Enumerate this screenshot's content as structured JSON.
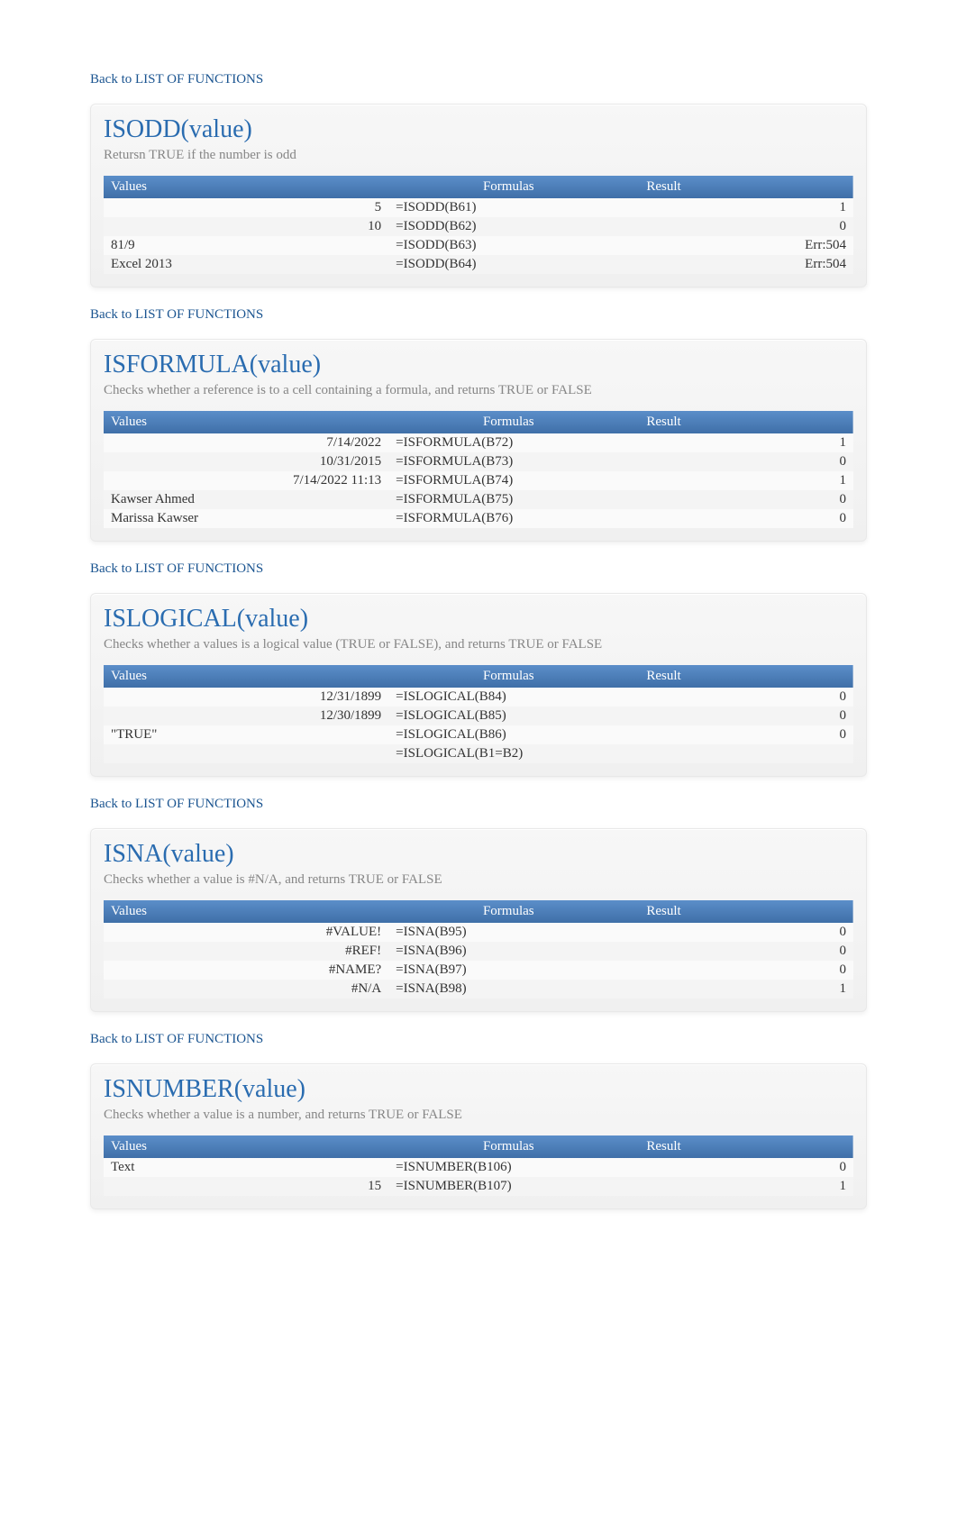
{
  "back_link_text": "Back to LIST OF FUNCTIONS",
  "colors": {
    "link": "#1a5490",
    "title": "#2a6cb0",
    "desc": "#868686",
    "header_bg_top": "#5b8ec9",
    "header_bg_bottom": "#3f6fa8",
    "header_text": "#ffffff",
    "block_bg": "#f0f0f0",
    "row_odd": "#fafafa",
    "row_even": "#f4f4f4"
  },
  "headers": {
    "values": "Values",
    "formulas": "Formulas",
    "result": "Result"
  },
  "sections": [
    {
      "id": "isodd",
      "title": "ISODD(value)",
      "desc": "Retursn TRUE if the number is odd",
      "rows": [
        {
          "value": "5",
          "value_align": "right",
          "formula": "=ISODD(B61)",
          "result": "1"
        },
        {
          "value": "10",
          "value_align": "right",
          "formula": "=ISODD(B62)",
          "result": "0"
        },
        {
          "value": "81/9",
          "value_align": "left",
          "formula": "=ISODD(B63)",
          "result": "Err:504"
        },
        {
          "value": "Excel 2013",
          "value_align": "left",
          "formula": "=ISODD(B64)",
          "result": "Err:504"
        }
      ]
    },
    {
      "id": "isformula",
      "title": "ISFORMULA(value)",
      "desc": "Checks whether a reference is to a cell containing a formula, and returns TRUE or FALSE",
      "rows": [
        {
          "value": "7/14/2022",
          "value_align": "right",
          "formula": "=ISFORMULA(B72)",
          "result": "1"
        },
        {
          "value": "10/31/2015",
          "value_align": "right",
          "formula": "=ISFORMULA(B73)",
          "result": "0"
        },
        {
          "value": "7/14/2022 11:13",
          "value_align": "right",
          "formula": "=ISFORMULA(B74)",
          "result": "1"
        },
        {
          "value": "Kawser Ahmed",
          "value_align": "left",
          "formula": "=ISFORMULA(B75)",
          "result": "0"
        },
        {
          "value": "Marissa Kawser",
          "value_align": "left",
          "formula": "=ISFORMULA(B76)",
          "result": "0"
        }
      ]
    },
    {
      "id": "islogical",
      "title": "ISLOGICAL(value)",
      "desc": "Checks whether a values is a logical value (TRUE or FALSE), and returns TRUE or FALSE",
      "rows": [
        {
          "value": "12/31/1899",
          "value_align": "right",
          "formula": "=ISLOGICAL(B84)",
          "result": "0"
        },
        {
          "value": "12/30/1899",
          "value_align": "right",
          "formula": "=ISLOGICAL(B85)",
          "result": "0"
        },
        {
          "value": "\"TRUE\"",
          "value_align": "left",
          "formula": "=ISLOGICAL(B86)",
          "result": "0"
        },
        {
          "value": "",
          "value_align": "right",
          "formula": "=ISLOGICAL(B1=B2)",
          "result": ""
        }
      ]
    },
    {
      "id": "isna",
      "title": "ISNA(value)",
      "desc": "Checks whether a value is #N/A, and returns TRUE or FALSE",
      "rows": [
        {
          "value": "#VALUE!",
          "value_align": "right",
          "formula": "=ISNA(B95)",
          "result": "0"
        },
        {
          "value": "#REF!",
          "value_align": "right",
          "formula": "=ISNA(B96)",
          "result": "0"
        },
        {
          "value": "#NAME?",
          "value_align": "right",
          "formula": "=ISNA(B97)",
          "result": "0"
        },
        {
          "value": "#N/A",
          "value_align": "right",
          "formula": "=ISNA(B98)",
          "result": "1"
        }
      ]
    },
    {
      "id": "isnumber",
      "title": "ISNUMBER(value)",
      "desc": "Checks whether a value is a number, and returns TRUE or FALSE",
      "rows": [
        {
          "value": "Text",
          "value_align": "left",
          "formula": "=ISNUMBER(B106)",
          "result": "0"
        },
        {
          "value": "15",
          "value_align": "right",
          "formula": "=ISNUMBER(B107)",
          "result": "1"
        }
      ]
    }
  ]
}
